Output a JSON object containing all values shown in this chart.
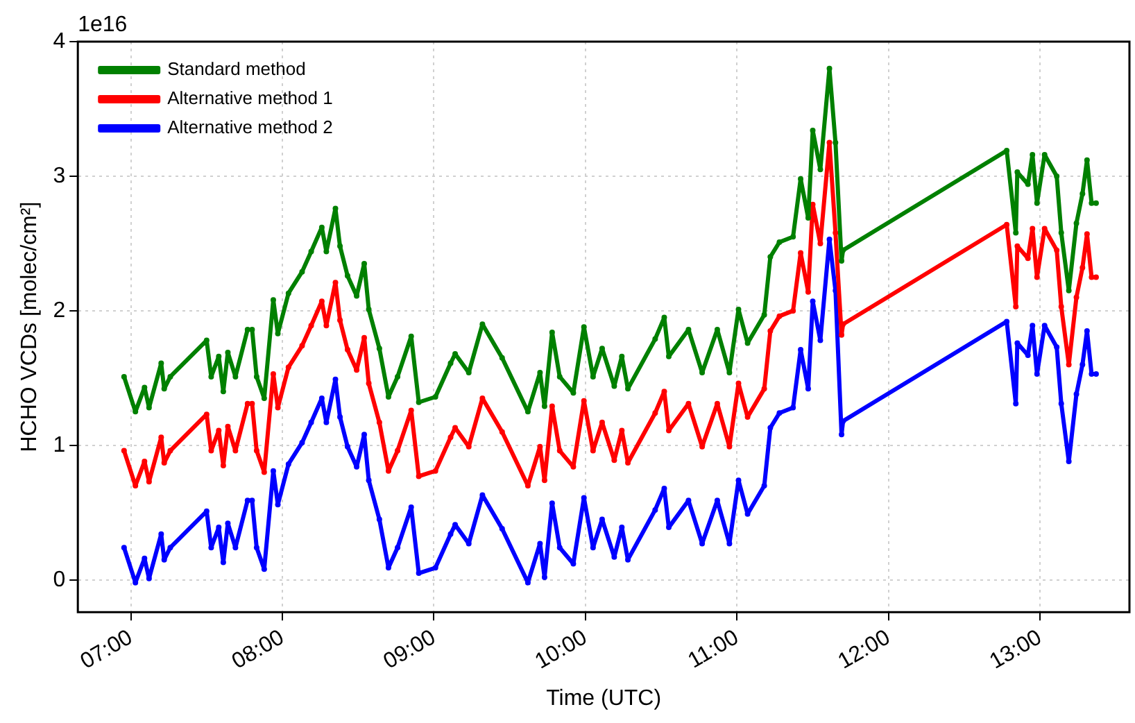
{
  "chart_data": {
    "type": "line",
    "xlabel": "Time (UTC)",
    "ylabel": "HCHO VCDs [molec/cm²]",
    "annotations": [
      "1e16"
    ],
    "x": [
      6.955,
      7.03,
      7.09,
      7.12,
      7.2,
      7.22,
      7.26,
      7.5,
      7.53,
      7.58,
      7.61,
      7.64,
      7.69,
      7.77,
      7.8,
      7.83,
      7.88,
      7.94,
      7.97,
      8.04,
      8.13,
      8.19,
      8.26,
      8.29,
      8.35,
      8.38,
      8.43,
      8.49,
      8.54,
      8.57,
      8.64,
      8.7,
      8.76,
      8.85,
      8.9,
      9.01,
      9.11,
      9.14,
      9.23,
      9.32,
      9.45,
      9.62,
      9.7,
      9.73,
      9.78,
      9.83,
      9.92,
      9.99,
      10.05,
      10.11,
      10.19,
      10.24,
      10.28,
      10.46,
      10.52,
      10.55,
      10.68,
      10.77,
      10.87,
      10.95,
      11.01,
      11.07,
      11.18,
      11.22,
      11.28,
      11.37,
      11.42,
      11.47,
      11.5,
      11.55,
      11.61,
      11.65,
      11.69,
      11.7,
      12.78,
      12.84,
      12.85,
      12.92,
      12.95,
      12.98,
      13.03,
      13.11,
      13.14,
      13.19,
      13.24,
      13.28,
      13.31,
      13.34,
      13.37
    ],
    "series": [
      {
        "name": "Standard method",
        "color": "#008000",
        "values": [
          1.51,
          1.25,
          1.43,
          1.28,
          1.61,
          1.42,
          1.51,
          1.78,
          1.51,
          1.66,
          1.4,
          1.69,
          1.51,
          1.86,
          1.86,
          1.51,
          1.35,
          2.08,
          1.83,
          2.13,
          2.29,
          2.44,
          2.62,
          2.44,
          2.76,
          2.48,
          2.26,
          2.11,
          2.35,
          2.01,
          1.72,
          1.36,
          1.51,
          1.81,
          1.32,
          1.36,
          1.61,
          1.68,
          1.54,
          1.9,
          1.65,
          1.25,
          1.54,
          1.29,
          1.84,
          1.51,
          1.39,
          1.88,
          1.51,
          1.72,
          1.44,
          1.66,
          1.42,
          1.79,
          1.95,
          1.66,
          1.86,
          1.54,
          1.86,
          1.54,
          2.01,
          1.76,
          1.97,
          2.4,
          2.51,
          2.55,
          2.98,
          2.69,
          3.34,
          3.05,
          3.8,
          3.25,
          2.37,
          2.45,
          3.19,
          2.58,
          3.03,
          2.94,
          3.16,
          2.8,
          3.16,
          3.0,
          2.58,
          2.15,
          2.65,
          2.87,
          3.12,
          2.8,
          2.8
        ]
      },
      {
        "name": "Alternative method 1",
        "color": "#ff0000",
        "values": [
          0.96,
          0.7,
          0.88,
          0.73,
          1.06,
          0.87,
          0.96,
          1.23,
          0.96,
          1.11,
          0.85,
          1.14,
          0.96,
          1.31,
          1.31,
          0.96,
          0.8,
          1.53,
          1.28,
          1.58,
          1.74,
          1.89,
          2.07,
          1.89,
          2.21,
          1.93,
          1.71,
          1.56,
          1.8,
          1.46,
          1.17,
          0.81,
          0.96,
          1.26,
          0.77,
          0.81,
          1.06,
          1.13,
          0.99,
          1.35,
          1.1,
          0.7,
          0.99,
          0.74,
          1.29,
          0.96,
          0.84,
          1.33,
          0.96,
          1.17,
          0.89,
          1.11,
          0.87,
          1.24,
          1.4,
          1.11,
          1.31,
          0.99,
          1.31,
          0.99,
          1.46,
          1.21,
          1.42,
          1.85,
          1.96,
          2.0,
          2.43,
          2.14,
          2.79,
          2.5,
          3.25,
          2.58,
          1.82,
          1.9,
          2.64,
          2.03,
          2.48,
          2.39,
          2.61,
          2.25,
          2.61,
          2.45,
          2.03,
          1.6,
          2.1,
          2.32,
          2.57,
          2.25,
          2.25
        ]
      },
      {
        "name": "Alternative method 2",
        "color": "#0000ff",
        "values": [
          0.24,
          -0.02,
          0.16,
          0.01,
          0.34,
          0.15,
          0.24,
          0.51,
          0.24,
          0.39,
          0.13,
          0.42,
          0.24,
          0.59,
          0.59,
          0.24,
          0.08,
          0.81,
          0.56,
          0.86,
          1.02,
          1.17,
          1.35,
          1.17,
          1.49,
          1.21,
          0.99,
          0.84,
          1.08,
          0.74,
          0.45,
          0.09,
          0.24,
          0.54,
          0.05,
          0.09,
          0.34,
          0.41,
          0.27,
          0.63,
          0.38,
          -0.02,
          0.27,
          0.02,
          0.57,
          0.24,
          0.12,
          0.61,
          0.24,
          0.45,
          0.17,
          0.39,
          0.15,
          0.52,
          0.68,
          0.39,
          0.59,
          0.27,
          0.59,
          0.27,
          0.74,
          0.49,
          0.7,
          1.13,
          1.24,
          1.28,
          1.71,
          1.42,
          2.07,
          1.78,
          2.53,
          2.15,
          1.08,
          1.18,
          1.92,
          1.31,
          1.76,
          1.67,
          1.89,
          1.53,
          1.89,
          1.73,
          1.31,
          0.88,
          1.38,
          1.6,
          1.85,
          1.53,
          1.53
        ]
      }
    ],
    "xlim": [
      6.65,
      13.59
    ],
    "xticks": [
      {
        "value": 7,
        "label": "07:00"
      },
      {
        "value": 8,
        "label": "08:00"
      },
      {
        "value": 9,
        "label": "09:00"
      },
      {
        "value": 10,
        "label": "10:00"
      },
      {
        "value": 11,
        "label": "11:00"
      },
      {
        "value": 12,
        "label": "12:00"
      },
      {
        "value": 13,
        "label": "13:00"
      }
    ],
    "ylim": [
      -0.24,
      4
    ],
    "yticks": [
      0,
      1,
      2,
      3,
      4
    ],
    "grid": true,
    "legend": "top left",
    "marker": "circle",
    "line_style": "solid"
  }
}
